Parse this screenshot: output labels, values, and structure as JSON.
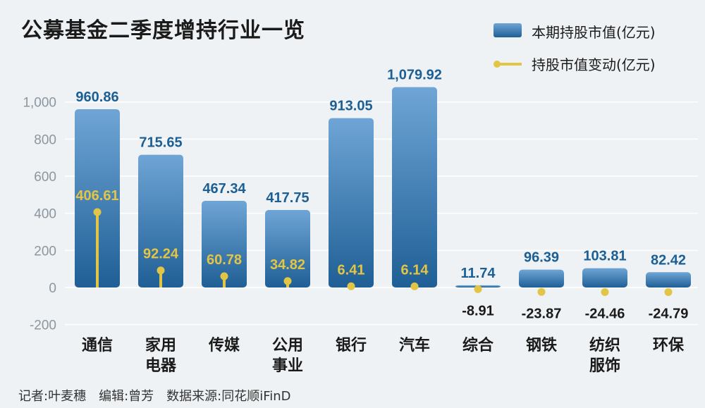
{
  "title": "公募基金二季度增持行业一览",
  "legend": {
    "bar_label": "本期持股市值(亿元)",
    "line_label": "持股市值变动(亿元)"
  },
  "footer": {
    "reporter": "记者:叶麦穗",
    "editor": "编辑:曾芳",
    "source": "数据来源:同花顺iFinD"
  },
  "colors": {
    "bar_top": "#6fa5d6",
    "bar_bottom": "#1f5f95",
    "bar_label": "#1b5f94",
    "change_marker": "#e2c545",
    "change_label_positive": "#e2c545",
    "change_label_negative": "#1a1a1a",
    "grid": "#ffffff"
  },
  "chart_data": {
    "type": "bar",
    "categories": [
      [
        "通信"
      ],
      [
        "家用",
        "电器"
      ],
      [
        "传媒"
      ],
      [
        "公用",
        "事业"
      ],
      [
        "银行"
      ],
      [
        "汽车"
      ],
      [
        "综合"
      ],
      [
        "钢铁"
      ],
      [
        "纺织",
        "服饰"
      ],
      [
        "环保"
      ]
    ],
    "series": [
      {
        "name": "本期持股市值(亿元)",
        "type": "bar",
        "values": [
          960.86,
          715.65,
          467.34,
          417.75,
          913.05,
          1079.92,
          11.74,
          96.39,
          103.81,
          82.42
        ],
        "labels": [
          "960.86",
          "715.65",
          "467.34",
          "417.75",
          "913.05",
          "1,079.92",
          "11.74",
          "96.39",
          "103.81",
          "82.42"
        ]
      },
      {
        "name": "持股市值变动(亿元)",
        "type": "lollipop",
        "values": [
          406.61,
          92.24,
          60.78,
          34.82,
          6.41,
          6.14,
          -8.91,
          -23.87,
          -24.46,
          -24.79
        ],
        "labels": [
          "406.61",
          "92.24",
          "60.78",
          "34.82",
          "6.41",
          "6.14",
          "-8.91",
          "-23.87",
          "-24.46",
          "-24.79"
        ]
      }
    ],
    "yticks": [
      {
        "value": 1000,
        "label": "1,000"
      },
      {
        "value": 800,
        "label": "800"
      },
      {
        "value": 600,
        "label": "600"
      },
      {
        "value": 400,
        "label": "400"
      },
      {
        "value": 200,
        "label": "200"
      },
      {
        "value": 0,
        "label": "0"
      },
      {
        "value": -200,
        "label": "-200"
      }
    ],
    "ylim": [
      -200,
      1000
    ],
    "grid": true,
    "legend_position": "top-right"
  }
}
